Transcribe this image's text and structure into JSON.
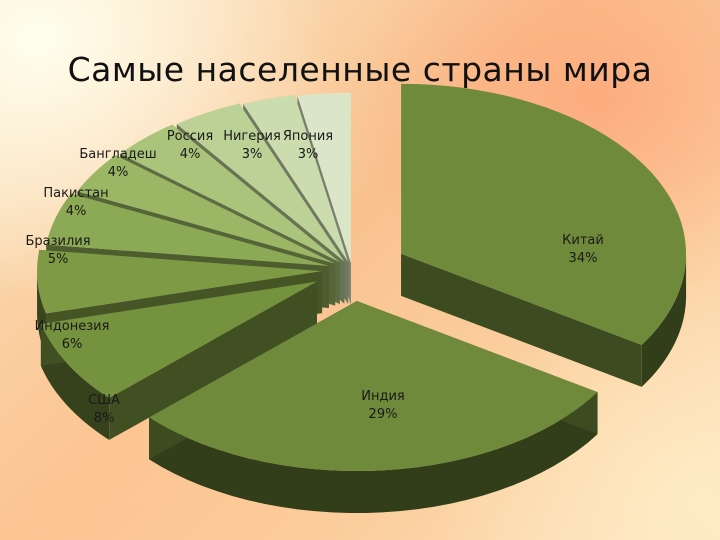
{
  "title": "Самые населенные страны мира",
  "chart_data": {
    "type": "pie",
    "title": "Самые населенные страны мира",
    "style": "3d-exploded",
    "slices": [
      {
        "name": "Китай",
        "value": 34,
        "label": "34%",
        "color": "#6f8a3a"
      },
      {
        "name": "Индия",
        "value": 29,
        "label": "29%",
        "color": "#6f8a3a"
      },
      {
        "name": "США",
        "value": 8,
        "label": "8%",
        "color": "#75923e"
      },
      {
        "name": "Индонезия",
        "value": 6,
        "label": "6%",
        "color": "#7e9a45"
      },
      {
        "name": "Бразилия",
        "value": 5,
        "label": "5%",
        "color": "#8ca955"
      },
      {
        "name": "Пакистан",
        "value": 4,
        "label": "4%",
        "color": "#9bb765"
      },
      {
        "name": "Бангладеш",
        "value": 4,
        "label": "4%",
        "color": "#abc47c"
      },
      {
        "name": "Россия",
        "value": 4,
        "label": "4%",
        "color": "#bcd196"
      },
      {
        "name": "Нигерия",
        "value": 3,
        "label": "3%",
        "color": "#cbdcae"
      },
      {
        "name": "Япония",
        "value": 3,
        "label": "3%",
        "color": "#dbe6c8"
      }
    ]
  }
}
